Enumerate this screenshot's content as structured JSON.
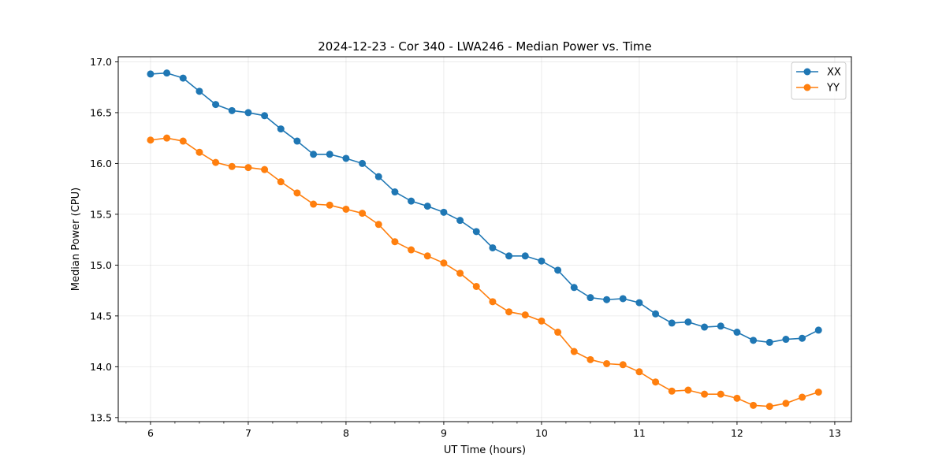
{
  "chart_data": {
    "type": "line",
    "title": "2024-12-23 - Cor 340 - LWA246 - Median Power vs. Time",
    "xlabel": "UT Time (hours)",
    "ylabel": "Median Power (CPU)",
    "xlim": [
      5.67,
      13.17
    ],
    "ylim": [
      13.46,
      17.05
    ],
    "xticks": [
      6,
      7,
      8,
      9,
      10,
      11,
      12,
      13
    ],
    "yticks": [
      13.5,
      14.0,
      14.5,
      15.0,
      15.5,
      16.0,
      16.5,
      17.0
    ],
    "xtick_labels": [
      "6",
      "7",
      "8",
      "9",
      "10",
      "11",
      "12",
      "13"
    ],
    "ytick_labels": [
      "13.5",
      "14.0",
      "14.5",
      "15.0",
      "15.5",
      "16.0",
      "16.5",
      "17.0"
    ],
    "grid": true,
    "legend_position": "top-right",
    "x": [
      6.0,
      6.1667,
      6.3333,
      6.5,
      6.6667,
      6.8333,
      7.0,
      7.1667,
      7.3333,
      7.5,
      7.6667,
      7.8333,
      8.0,
      8.1667,
      8.3333,
      8.5,
      8.6667,
      8.8333,
      9.0,
      9.1667,
      9.3333,
      9.5,
      9.6667,
      9.8333,
      10.0,
      10.1667,
      10.3333,
      10.5,
      10.6667,
      10.8333,
      11.0,
      11.1667,
      11.3333,
      11.5,
      11.6667,
      11.8333,
      12.0,
      12.1667,
      12.3333,
      12.5,
      12.6667,
      12.8333
    ],
    "series": [
      {
        "name": "XX",
        "color": "#1f77b4",
        "values": [
          16.88,
          16.89,
          16.84,
          16.71,
          16.58,
          16.52,
          16.5,
          16.47,
          16.34,
          16.22,
          16.09,
          16.09,
          16.05,
          16.0,
          15.87,
          15.72,
          15.63,
          15.58,
          15.52,
          15.44,
          15.33,
          15.17,
          15.09,
          15.09,
          15.04,
          14.95,
          14.78,
          14.68,
          14.66,
          14.67,
          14.63,
          14.52,
          14.43,
          14.44,
          14.39,
          14.4,
          14.34,
          14.26,
          14.24,
          14.27,
          14.28,
          14.36
        ]
      },
      {
        "name": "YY",
        "color": "#ff7f0e",
        "values": [
          16.23,
          16.25,
          16.22,
          16.11,
          16.01,
          15.97,
          15.96,
          15.94,
          15.82,
          15.71,
          15.6,
          15.59,
          15.55,
          15.51,
          15.4,
          15.23,
          15.15,
          15.09,
          15.02,
          14.92,
          14.79,
          14.64,
          14.54,
          14.51,
          14.45,
          14.34,
          14.15,
          14.07,
          14.03,
          14.02,
          13.95,
          13.85,
          13.76,
          13.77,
          13.73,
          13.73,
          13.69,
          13.62,
          13.61,
          13.64,
          13.7,
          13.75
        ]
      }
    ]
  }
}
